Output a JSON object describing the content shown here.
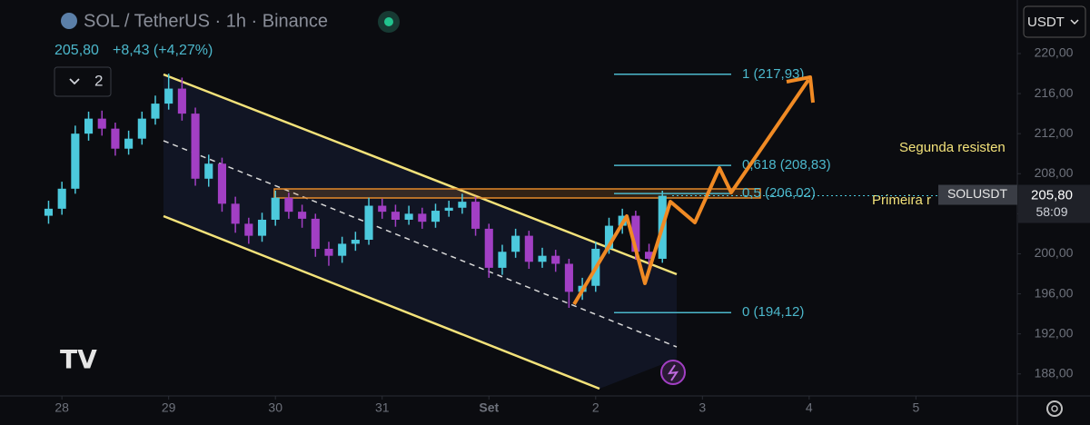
{
  "chart_data": {
    "type": "candlestick",
    "title": "SOL / TetherUS · 1h · Binance",
    "last_price": {
      "value": 205.8,
      "label": "205,80"
    },
    "change_label": "+8,43 (+4,27%)",
    "indicators_label": "2",
    "currency": "USDT",
    "symbol": "SOLUSDT",
    "countdown": "58:09",
    "annotations": [
      "Segunda resisten",
      "Primeira r"
    ],
    "up_color": "#4cc9dc",
    "down_color": "#a23fc4",
    "fib_color": "#4cb8cc",
    "xlim": [
      -0.58,
      8.95
    ],
    "ylim": [
      185.8,
      225.35
    ],
    "xticks": [
      {
        "value": 0,
        "label": "28"
      },
      {
        "value": 1,
        "label": "29"
      },
      {
        "value": 2,
        "label": "30"
      },
      {
        "value": 3,
        "label": "31"
      },
      {
        "value": 4,
        "label": "Set"
      },
      {
        "value": 5,
        "label": "2"
      },
      {
        "value": 6,
        "label": "3"
      },
      {
        "value": 7,
        "label": "4"
      },
      {
        "value": 8,
        "label": "5"
      }
    ],
    "yticks": [
      {
        "value": 188,
        "label": "188,00"
      },
      {
        "value": 192,
        "label": "192,00"
      },
      {
        "value": 196,
        "label": "196,00"
      },
      {
        "value": 200,
        "label": "200,00"
      },
      {
        "value": 204,
        "label": "204,00"
      },
      {
        "value": 208,
        "label": "208,00"
      },
      {
        "value": 212,
        "label": "212,00"
      },
      {
        "value": 216,
        "label": "216,00"
      },
      {
        "value": 220,
        "label": "220,00"
      }
    ],
    "fib_levels": [
      {
        "value": 217.93,
        "label": "1 (217,93)"
      },
      {
        "value": 208.83,
        "label": "0,618 (208,83)"
      },
      {
        "value": 206.02,
        "label": "0,5 (206,02)"
      },
      {
        "value": 194.12,
        "label": "0 (194,12)"
      }
    ],
    "x": [
      -0.125,
      0,
      0.125,
      0.25,
      0.375,
      0.5,
      0.625,
      0.75,
      0.875,
      1,
      1.125,
      1.25,
      1.375,
      1.5,
      1.625,
      1.75,
      1.875,
      2,
      2.125,
      2.25,
      2.375,
      2.5,
      2.625,
      2.75,
      2.875,
      3,
      3.125,
      3.25,
      3.375,
      3.5,
      3.625,
      3.75,
      3.875,
      4,
      4.125,
      4.25,
      4.375,
      4.5,
      4.625,
      4.75,
      4.875,
      5,
      5.125,
      5.25,
      5.375,
      5.5,
      5.625
    ],
    "open": [
      203.8,
      204.5,
      206.5,
      212,
      213.5,
      212.5,
      210.5,
      211.5,
      213.5,
      215,
      216.5,
      214,
      207.5,
      209,
      205,
      203,
      201.8,
      203.4,
      205.6,
      204.2,
      203.5,
      200.5,
      199.8,
      201,
      201.4,
      204.8,
      204.2,
      203.4,
      204,
      203.2,
      204.3,
      204.6,
      205.2,
      202.5,
      198.6,
      200.2,
      201.8,
      199.2,
      199.8,
      199,
      196.2,
      196.8,
      200.5,
      202.8,
      203.8,
      200.2,
      199.5
    ],
    "high": [
      205.3,
      207.2,
      212.8,
      214.2,
      214.3,
      213.1,
      212.3,
      214.2,
      215.8,
      218,
      217.6,
      214.6,
      209.9,
      209.6,
      205.7,
      203.6,
      204.1,
      206.3,
      206.1,
      204.9,
      204,
      201.2,
      201.7,
      202.2,
      205.6,
      205.5,
      204.9,
      204.8,
      204.6,
      205,
      205.3,
      206,
      205.7,
      203,
      200.9,
      202.5,
      202.3,
      200.6,
      200.4,
      199.5,
      197.6,
      201.2,
      203.6,
      204.5,
      204.3,
      201,
      206.3
    ],
    "low": [
      203,
      203.9,
      206,
      211.3,
      211.8,
      209.8,
      209.9,
      210.9,
      212.9,
      214.4,
      213.3,
      206.8,
      206.7,
      204.2,
      202.1,
      201,
      201.2,
      202.8,
      203.5,
      202.6,
      199.7,
      198.8,
      199.1,
      200.3,
      200.9,
      203.5,
      202.7,
      202.9,
      202.5,
      202.6,
      203.7,
      204,
      201.8,
      197.6,
      197.9,
      199.6,
      198.5,
      198.6,
      198.2,
      194.6,
      195.4,
      196.2,
      200,
      202,
      199.4,
      198.4,
      199.1
    ],
    "close": [
      204.5,
      206.5,
      212,
      213.5,
      212.5,
      210.5,
      211.5,
      213.5,
      215,
      216.5,
      214,
      207.5,
      209,
      205,
      203,
      201.8,
      203.4,
      205.6,
      204.2,
      203.5,
      200.5,
      199.8,
      201,
      201.4,
      204.8,
      204.2,
      203.4,
      204,
      203.2,
      204.3,
      204.6,
      205.2,
      202.5,
      198.6,
      200.2,
      201.8,
      199.2,
      199.8,
      199,
      196.2,
      196.8,
      200.5,
      202.8,
      203.8,
      200.2,
      199.5,
      205.8
    ]
  }
}
